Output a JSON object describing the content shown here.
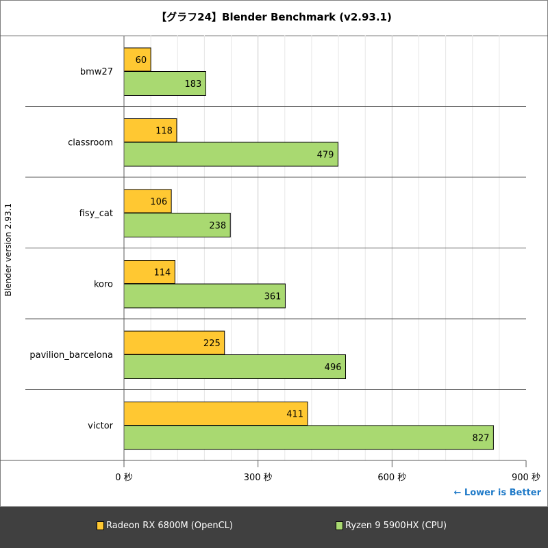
{
  "chart_data": {
    "type": "bar",
    "orientation": "horizontal",
    "title": "【グラフ24】Blender Benchmark (v2.93.1)",
    "ylabel": "Blender version 2.93.1",
    "xlabel": "",
    "categories": [
      "bmw27",
      "classroom",
      "fisy_cat",
      "koro",
      "pavilion_barcelona",
      "victor"
    ],
    "series": [
      {
        "name": "Radeon RX 6800M (OpenCL)",
        "color": "#ffc832",
        "values": [
          60,
          118,
          106,
          114,
          225,
          411
        ]
      },
      {
        "name": "Ryzen 9 5900HX (CPU)",
        "color": "#a9d971",
        "values": [
          183,
          479,
          238,
          361,
          496,
          827
        ]
      }
    ],
    "xlim": [
      0,
      900
    ],
    "xticks": [
      0,
      300,
      600,
      900
    ],
    "xtick_labels": [
      "0 秒",
      "300 秒",
      "600 秒",
      "900 秒"
    ],
    "minor_grid_step": 60,
    "grid": true,
    "legend_placement": "bottom",
    "annotation": "← Lower is Better"
  }
}
